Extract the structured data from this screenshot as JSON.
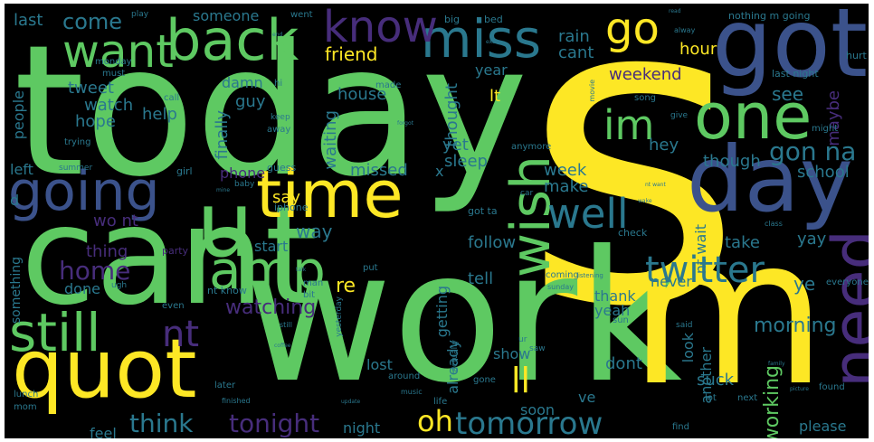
{
  "palette": {
    "background": "#000000",
    "yellow": "#fde725",
    "green": "#5ec962",
    "teal": "#21918c",
    "blue": "#3b528b",
    "purple": "#472d7b",
    "darkpurple": "#440154",
    "lightgreen": "#8fd744",
    "cyan": "#2a788e"
  },
  "words": [
    {
      "text": "s",
      "color": "#fde725"
    },
    {
      "text": "today",
      "color": "#5ec962"
    },
    {
      "text": "work",
      "color": "#5ec962"
    },
    {
      "text": "cant",
      "color": "#5ec962"
    },
    {
      "text": "m",
      "color": "#fde725"
    },
    {
      "text": "got",
      "color": "#3b528b"
    },
    {
      "text": "day",
      "color": "#3b528b"
    },
    {
      "text": "one",
      "color": "#5ec962"
    },
    {
      "text": "u",
      "color": "#5ec962"
    },
    {
      "text": "back",
      "color": "#5ec962"
    },
    {
      "text": "quot",
      "color": "#fde725"
    },
    {
      "text": "time",
      "color": "#fde725"
    },
    {
      "text": "going",
      "color": "#3b528b"
    },
    {
      "text": "miss",
      "color": "#2a788e"
    },
    {
      "text": "want",
      "color": "#5ec962"
    },
    {
      "text": "go",
      "color": "#fde725"
    },
    {
      "text": "know",
      "color": "#472d7b"
    },
    {
      "text": "still",
      "color": "#5ec962"
    },
    {
      "text": "amp",
      "color": "#5ec962"
    },
    {
      "text": "im",
      "color": "#5ec962"
    },
    {
      "text": "need",
      "color": "#472d7b"
    },
    {
      "text": "wish",
      "color": "#5ec962"
    },
    {
      "text": "well",
      "color": "#2a788e"
    },
    {
      "text": "twitter",
      "color": "#2a788e"
    },
    {
      "text": "nt",
      "color": "#472d7b"
    },
    {
      "text": "tomorrow",
      "color": "#2a788e"
    },
    {
      "text": "oh",
      "color": "#fde725"
    },
    {
      "text": "ll",
      "color": "#fde725"
    },
    {
      "text": "tonight",
      "color": "#472d7b"
    },
    {
      "text": "think",
      "color": "#2a788e"
    },
    {
      "text": "home",
      "color": "#472d7b"
    },
    {
      "text": "gon na",
      "color": "#2a788e"
    },
    {
      "text": "come",
      "color": "#2a788e"
    },
    {
      "text": "watching",
      "color": "#472d7b"
    },
    {
      "text": "morning",
      "color": "#2a788e"
    },
    {
      "text": "working",
      "color": "#5ec962"
    },
    {
      "text": "friend",
      "color": "#fde725"
    },
    {
      "text": "someone",
      "color": "#2a788e"
    },
    {
      "text": "weekend",
      "color": "#472d7b"
    },
    {
      "text": "last",
      "color": "#2a788e"
    },
    {
      "text": "say",
      "color": "#fde725"
    },
    {
      "text": "see",
      "color": "#2a788e"
    },
    {
      "text": "way",
      "color": "#2a788e"
    },
    {
      "text": "hour",
      "color": "#fde725"
    },
    {
      "text": "suck",
      "color": "#2a788e"
    },
    {
      "text": "rain",
      "color": "#2a788e"
    },
    {
      "text": "cant",
      "color": "#2a788e"
    },
    {
      "text": "house",
      "color": "#2a788e"
    },
    {
      "text": "watch",
      "color": "#2a788e"
    },
    {
      "text": "tweet",
      "color": "#2a788e"
    },
    {
      "text": "help",
      "color": "#2a788e"
    },
    {
      "text": "hope",
      "color": "#2a788e"
    },
    {
      "text": "guy",
      "color": "#2a788e"
    },
    {
      "text": "damn",
      "color": "#2a788e"
    },
    {
      "text": "finally",
      "color": "#2a788e"
    },
    {
      "text": "waiting",
      "color": "#2a788e"
    },
    {
      "text": "thought",
      "color": "#2a788e"
    },
    {
      "text": "year",
      "color": "#2a788e"
    },
    {
      "text": "lt",
      "color": "#fde725"
    },
    {
      "text": "yet",
      "color": "#2a788e"
    },
    {
      "text": "sleep",
      "color": "#2a788e"
    },
    {
      "text": "missed",
      "color": "#2a788e"
    },
    {
      "text": "week",
      "color": "#2a788e"
    },
    {
      "text": "make",
      "color": "#2a788e"
    },
    {
      "text": "hey",
      "color": "#2a788e"
    },
    {
      "text": "though",
      "color": "#2a788e"
    },
    {
      "text": "school",
      "color": "#2a788e"
    },
    {
      "text": "maybe",
      "color": "#472d7b"
    },
    {
      "text": "phone",
      "color": "#472d7b"
    },
    {
      "text": "people",
      "color": "#2a788e"
    },
    {
      "text": "left",
      "color": "#2a788e"
    },
    {
      "text": "d",
      "color": "#2a788e"
    },
    {
      "text": "wo nt",
      "color": "#472d7b"
    },
    {
      "text": "thing",
      "color": "#472d7b"
    },
    {
      "text": "start",
      "color": "#2a788e"
    },
    {
      "text": "follow",
      "color": "#2a788e"
    },
    {
      "text": "take",
      "color": "#2a788e"
    },
    {
      "text": "yay",
      "color": "#2a788e"
    },
    {
      "text": "nt wait",
      "color": "#2a788e"
    },
    {
      "text": "tell",
      "color": "#2a788e"
    },
    {
      "text": "never",
      "color": "#2a788e"
    },
    {
      "text": "ye",
      "color": "#2a788e"
    },
    {
      "text": "done",
      "color": "#2a788e"
    },
    {
      "text": "re",
      "color": "#fde725"
    },
    {
      "text": "getting",
      "color": "#2a788e"
    },
    {
      "text": "thank",
      "color": "#2a788e"
    },
    {
      "text": "yeah",
      "color": "#2a788e"
    },
    {
      "text": "show",
      "color": "#2a788e"
    },
    {
      "text": "already",
      "color": "#2a788e"
    },
    {
      "text": "lost",
      "color": "#2a788e"
    },
    {
      "text": "look",
      "color": "#2a788e"
    },
    {
      "text": "dont",
      "color": "#2a788e"
    },
    {
      "text": "ve",
      "color": "#2a788e"
    },
    {
      "text": "soon",
      "color": "#2a788e"
    },
    {
      "text": "another",
      "color": "#2a788e"
    },
    {
      "text": "night",
      "color": "#2a788e"
    },
    {
      "text": "feel",
      "color": "#2a788e"
    },
    {
      "text": "please",
      "color": "#2a788e"
    },
    {
      "text": "something",
      "color": "#2a788e"
    },
    {
      "text": "x",
      "color": "#2a788e"
    },
    {
      "text": "party",
      "color": "#472d7b"
    },
    {
      "text": "iphone",
      "color": "#2a788e"
    },
    {
      "text": "girl",
      "color": "#2a788e"
    },
    {
      "text": "guess",
      "color": "#2a788e"
    },
    {
      "text": "baby",
      "color": "#2a788e"
    },
    {
      "text": "summer",
      "color": "#2a788e"
    },
    {
      "text": "trying",
      "color": "#2a788e"
    },
    {
      "text": "call",
      "color": "#2a788e"
    },
    {
      "text": "must",
      "color": "#2a788e"
    },
    {
      "text": "monday",
      "color": "#2a788e"
    },
    {
      "text": "hi",
      "color": "#2a788e"
    },
    {
      "text": "keep",
      "color": "#2a788e"
    },
    {
      "text": "away",
      "color": "#2a788e"
    },
    {
      "text": "made",
      "color": "#2a788e"
    },
    {
      "text": "anymore",
      "color": "#2a788e"
    },
    {
      "text": "song",
      "color": "#2a788e"
    },
    {
      "text": "might",
      "color": "#2a788e"
    },
    {
      "text": "big",
      "color": "#2a788e"
    },
    {
      "text": "bed",
      "color": "#2a788e"
    },
    {
      "text": "went",
      "color": "#2a788e"
    },
    {
      "text": "play",
      "color": "#2a788e"
    },
    {
      "text": "nothing m going",
      "color": "#2a788e"
    },
    {
      "text": "last night",
      "color": "#2a788e"
    },
    {
      "text": "hurt",
      "color": "#2a788e"
    },
    {
      "text": "got ta",
      "color": "#2a788e"
    },
    {
      "text": "check",
      "color": "#2a788e"
    },
    {
      "text": "even",
      "color": "#2a788e"
    },
    {
      "text": "nt know",
      "color": "#2a788e"
    },
    {
      "text": "man",
      "color": "#2a788e"
    },
    {
      "text": "bit",
      "color": "#2a788e"
    },
    {
      "text": "put",
      "color": "#2a788e"
    },
    {
      "text": "coming",
      "color": "#2a788e"
    },
    {
      "text": "everyone",
      "color": "#2a788e"
    },
    {
      "text": "yesterday",
      "color": "#2a788e"
    },
    {
      "text": "sun",
      "color": "#2a788e"
    },
    {
      "text": "said",
      "color": "#2a788e"
    },
    {
      "text": "next",
      "color": "#2a788e"
    },
    {
      "text": "find",
      "color": "#2a788e"
    },
    {
      "text": "lot",
      "color": "#2a788e"
    },
    {
      "text": "found",
      "color": "#2a788e"
    },
    {
      "text": "life",
      "color": "#2a788e"
    },
    {
      "text": "gone",
      "color": "#2a788e"
    },
    {
      "text": "around",
      "color": "#2a788e"
    },
    {
      "text": "later",
      "color": "#2a788e"
    },
    {
      "text": "lunch",
      "color": "#2a788e"
    },
    {
      "text": "mom",
      "color": "#2a788e"
    },
    {
      "text": "still",
      "color": "#2a788e"
    },
    {
      "text": "ugh",
      "color": "#2a788e"
    },
    {
      "text": "actually",
      "color": "#2a788e"
    },
    {
      "text": "ur",
      "color": "#2a788e"
    },
    {
      "text": "saw",
      "color": "#2a788e"
    },
    {
      "text": "music",
      "color": "#2a788e"
    },
    {
      "text": "finished",
      "color": "#2a788e"
    },
    {
      "text": "sunday",
      "color": "#2a788e"
    },
    {
      "text": "alway",
      "color": "#2a788e"
    },
    {
      "text": "movie",
      "color": "#2a788e"
    },
    {
      "text": "class",
      "color": "#2a788e"
    },
    {
      "text": "give",
      "color": "#2a788e"
    },
    {
      "text": "car",
      "color": "#2a788e"
    },
    {
      "text": "read",
      "color": "#2a788e"
    },
    {
      "text": "end",
      "color": "#2a788e"
    },
    {
      "text": "exam",
      "color": "#2a788e"
    },
    {
      "text": "forgot",
      "color": "#2a788e"
    },
    {
      "text": "coffee",
      "color": "#2a788e"
    },
    {
      "text": "update",
      "color": "#2a788e"
    },
    {
      "text": "listening",
      "color": "#2a788e"
    },
    {
      "text": "family",
      "color": "#2a788e"
    },
    {
      "text": "picture",
      "color": "#2a788e"
    },
    {
      "text": "nt want",
      "color": "#2a788e"
    },
    {
      "text": "talk",
      "color": "#2a788e"
    },
    {
      "text": "mine",
      "color": "#2a788e"
    },
    {
      "text": "wake",
      "color": "#2a788e"
    }
  ]
}
